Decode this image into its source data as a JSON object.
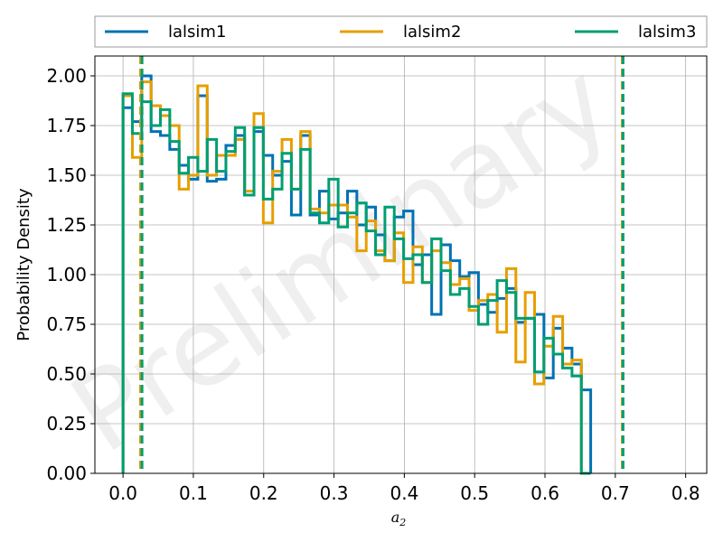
{
  "watermark": "Preliminary",
  "chart_data": {
    "type": "step-histogram",
    "xlabel": "a",
    "xlabel_subscript": "2",
    "ylabel": "Probability Density",
    "xlim": [
      -0.04,
      0.83
    ],
    "ylim": [
      0,
      2.1
    ],
    "xticks": [
      0.0,
      0.1,
      0.2,
      0.3,
      0.4,
      0.5,
      0.6,
      0.7,
      0.8
    ],
    "xtick_labels": [
      "0.0",
      "0.1",
      "0.2",
      "0.3",
      "0.4",
      "0.5",
      "0.6",
      "0.7",
      "0.8"
    ],
    "yticks": [
      0.0,
      0.25,
      0.5,
      0.75,
      1.0,
      1.25,
      1.5,
      1.75,
      2.0
    ],
    "ytick_labels": [
      "0.00",
      "0.25",
      "0.50",
      "0.75",
      "1.00",
      "1.25",
      "1.50",
      "1.75",
      "2.00"
    ],
    "grid": true,
    "legend_placement": "top, above plot",
    "bin_edges_start": 0.0,
    "bin_width": 0.0133,
    "series": [
      {
        "name": "lalsim1",
        "color": "#0072B2",
        "values": [
          1.84,
          1.77,
          2.0,
          1.72,
          1.7,
          1.63,
          1.55,
          1.48,
          1.9,
          1.47,
          1.48,
          1.65,
          1.7,
          1.4,
          1.72,
          1.6,
          1.5,
          1.57,
          1.3,
          1.7,
          1.3,
          1.42,
          1.28,
          1.31,
          1.42,
          1.25,
          1.34,
          1.2,
          1.07,
          1.29,
          1.32,
          1.05,
          1.1,
          0.8,
          1.15,
          1.07,
          0.99,
          1.01,
          0.85,
          0.81,
          0.88,
          0.93,
          0.76,
          0.78,
          0.8,
          0.48,
          0.73,
          0.63,
          0.55,
          0.42
        ],
        "ci_lines": [
          0.025,
          0.71
        ]
      },
      {
        "name": "lalsim2",
        "color": "#E69F00",
        "values": [
          1.9,
          1.59,
          1.97,
          1.85,
          1.8,
          1.75,
          1.43,
          1.5,
          1.95,
          1.5,
          1.6,
          1.6,
          1.68,
          1.42,
          1.81,
          1.26,
          1.52,
          1.68,
          1.43,
          1.72,
          1.33,
          1.31,
          1.35,
          1.35,
          1.29,
          1.12,
          1.27,
          1.12,
          1.07,
          1.21,
          0.96,
          1.14,
          0.96,
          1.12,
          1.06,
          0.95,
          0.98,
          0.82,
          0.87,
          0.9,
          0.71,
          1.03,
          0.56,
          0.91,
          0.45,
          0.64,
          0.79,
          0.55,
          0.57,
          0.0
        ],
        "ci_lines": [
          0.025,
          0.71
        ]
      },
      {
        "name": "lalsim3",
        "color": "#009E73",
        "values": [
          1.91,
          1.71,
          1.87,
          1.75,
          1.83,
          1.67,
          1.51,
          1.59,
          1.52,
          1.68,
          1.52,
          1.62,
          1.74,
          1.4,
          1.74,
          1.38,
          1.43,
          1.61,
          1.43,
          1.63,
          1.31,
          1.26,
          1.48,
          1.24,
          1.31,
          1.36,
          1.22,
          1.1,
          1.34,
          1.18,
          1.08,
          1.1,
          0.96,
          1.18,
          1.02,
          0.9,
          0.93,
          0.84,
          0.75,
          0.87,
          0.97,
          0.91,
          0.78,
          0.78,
          0.51,
          0.68,
          0.6,
          0.53,
          0.49,
          0.0
        ],
        "ci_lines": [
          0.027,
          0.711
        ]
      }
    ]
  }
}
